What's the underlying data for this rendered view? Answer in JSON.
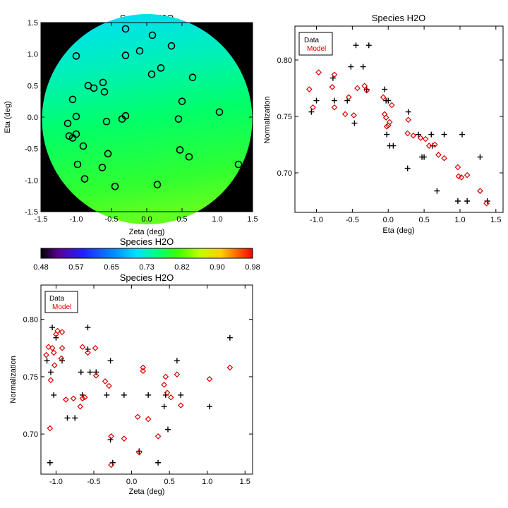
{
  "chart_data": [
    {
      "type": "heatmap",
      "title": "Species H2O",
      "xlabel": "Zeta (deg)",
      "ylabel": "Eta (deg)",
      "xlim": [
        -1.5,
        1.5
      ],
      "ylim": [
        -1.5,
        1.5
      ],
      "xticks": [
        "-1.5",
        "-1.0",
        "-0.5",
        "0.0",
        "0.5",
        "1.0",
        "1.5"
      ],
      "yticks": [
        "-1.5",
        "-1.0",
        "-0.5",
        "0.0",
        "0.5",
        "1.0",
        "1.5"
      ],
      "background": "#000000",
      "field": "circular map of normalization, cyan (~0.68) at top to green (~0.78) at bottom",
      "points": [
        [
          -1.0,
          0.97
        ],
        [
          -1.05,
          0.28
        ],
        [
          -1.12,
          -0.1
        ],
        [
          -1.1,
          -0.3
        ],
        [
          -1.05,
          -0.33
        ],
        [
          -1.0,
          -0.27
        ],
        [
          -1.0,
          0.01
        ],
        [
          -0.98,
          -0.75
        ],
        [
          -0.9,
          -0.46
        ],
        [
          -0.88,
          -0.98
        ],
        [
          -0.83,
          0.5
        ],
        [
          -0.75,
          0.46
        ],
        [
          -0.62,
          0.55
        ],
        [
          -0.63,
          -0.8
        ],
        [
          -0.6,
          0.4
        ],
        [
          -0.57,
          -0.07
        ],
        [
          -0.55,
          -0.58
        ],
        [
          -0.45,
          -1.1
        ],
        [
          -0.35,
          -0.03
        ],
        [
          -0.3,
          0.02
        ],
        [
          -0.3,
          1.4
        ],
        [
          -0.3,
          0.98
        ],
        [
          -0.1,
          1.05
        ],
        [
          0.08,
          1.3
        ],
        [
          0.07,
          0.68
        ],
        [
          0.2,
          0.78
        ],
        [
          0.15,
          -1.07
        ],
        [
          0.35,
          1.13
        ],
        [
          0.45,
          -0.03
        ],
        [
          0.47,
          -0.52
        ],
        [
          0.5,
          0.25
        ],
        [
          0.6,
          -0.63
        ],
        [
          0.65,
          0.63
        ],
        [
          1.03,
          0.08
        ],
        [
          1.3,
          -0.75
        ]
      ]
    },
    {
      "type": "scatter",
      "title": "Species H2O",
      "xlabel": "Eta (deg)",
      "ylabel": "Normalization",
      "xlim": [
        -1.3,
        1.6
      ],
      "ylim": [
        0.665,
        0.83
      ],
      "xticks": [
        "-1.0",
        "-0.5",
        "0.0",
        "0.5",
        "1.0",
        "1.5"
      ],
      "yticks": [
        "0.70",
        "0.75",
        "0.80"
      ],
      "legend": [
        "Data",
        "Model"
      ],
      "legend_position": "top-left",
      "series": [
        {
          "name": "Data",
          "color": "#000000",
          "marker": "plus",
          "points": [
            [
              -1.07,
              0.754
            ],
            [
              -1.0,
              0.764
            ],
            [
              -0.77,
              0.784
            ],
            [
              -0.75,
              0.764
            ],
            [
              -0.57,
              0.764
            ],
            [
              -0.52,
              0.794
            ],
            [
              -0.47,
              0.744
            ],
            [
              -0.45,
              0.813
            ],
            [
              -0.35,
              0.794
            ],
            [
              -0.3,
              0.774
            ],
            [
              -0.27,
              0.813
            ],
            [
              -0.05,
              0.774
            ],
            [
              -0.03,
              0.764
            ],
            [
              -0.02,
              0.734
            ],
            [
              0.02,
              0.724
            ],
            [
              0.0,
              0.764
            ],
            [
              0.07,
              0.724
            ],
            [
              0.27,
              0.704
            ],
            [
              0.28,
              0.754
            ],
            [
              0.42,
              0.734
            ],
            [
              0.47,
              0.714
            ],
            [
              0.5,
              0.714
            ],
            [
              0.6,
              0.734
            ],
            [
              0.62,
              0.724
            ],
            [
              0.68,
              0.684
            ],
            [
              0.78,
              0.734
            ],
            [
              0.97,
              0.675
            ],
            [
              1.03,
              0.734
            ],
            [
              1.1,
              0.675
            ],
            [
              1.28,
              0.714
            ],
            [
              1.38,
              0.675
            ]
          ]
        },
        {
          "name": "Model",
          "color": "#dd0000",
          "marker": "diamond",
          "points": [
            [
              -1.1,
              0.774
            ],
            [
              -1.05,
              0.758
            ],
            [
              -0.97,
              0.789
            ],
            [
              -0.78,
              0.776
            ],
            [
              -0.75,
              0.787
            ],
            [
              -0.75,
              0.758
            ],
            [
              -0.6,
              0.752
            ],
            [
              -0.55,
              0.767
            ],
            [
              -0.48,
              0.751
            ],
            [
              -0.43,
              0.775
            ],
            [
              -0.33,
              0.777
            ],
            [
              -0.3,
              0.773
            ],
            [
              -0.07,
              0.767
            ],
            [
              -0.05,
              0.752
            ],
            [
              -0.03,
              0.749
            ],
            [
              -0.02,
              0.741
            ],
            [
              0.02,
              0.745
            ],
            [
              0.0,
              0.742
            ],
            [
              0.05,
              0.76
            ],
            [
              0.27,
              0.735
            ],
            [
              0.28,
              0.747
            ],
            [
              0.35,
              0.733
            ],
            [
              0.45,
              0.731
            ],
            [
              0.52,
              0.73
            ],
            [
              0.57,
              0.724
            ],
            [
              0.65,
              0.725
            ],
            [
              0.7,
              0.716
            ],
            [
              0.78,
              0.713
            ],
            [
              0.97,
              0.705
            ],
            [
              0.98,
              0.697
            ],
            [
              1.02,
              0.696
            ],
            [
              1.1,
              0.698
            ],
            [
              1.28,
              0.684
            ],
            [
              1.37,
              0.673
            ]
          ]
        }
      ]
    },
    {
      "type": "scatter",
      "title": "Species H2O",
      "xlabel": "Zeta (deg)",
      "ylabel": "Normalization",
      "xlim": [
        -1.2,
        1.6
      ],
      "ylim": [
        0.665,
        0.83
      ],
      "xticks": [
        "-1.0",
        "-0.5",
        "0.0",
        "0.5",
        "1.0",
        "1.5"
      ],
      "yticks": [
        "0.70",
        "0.75",
        "0.80"
      ],
      "legend": [
        "Data",
        "Model"
      ],
      "legend_position": "top-left",
      "series": [
        {
          "name": "Data",
          "color": "#000000",
          "marker": "plus",
          "points": [
            [
              -1.12,
              0.764
            ],
            [
              -1.08,
              0.675
            ],
            [
              -1.07,
              0.754
            ],
            [
              -1.05,
              0.793
            ],
            [
              -1.03,
              0.734
            ],
            [
              -1.0,
              0.784
            ],
            [
              -1.03,
              0.813
            ],
            [
              -0.92,
              0.813
            ],
            [
              -0.92,
              0.764
            ],
            [
              -0.85,
              0.714
            ],
            [
              -0.75,
              0.714
            ],
            [
              -0.67,
              0.754
            ],
            [
              -0.65,
              0.734
            ],
            [
              -0.58,
              0.774
            ],
            [
              -0.58,
              0.793
            ],
            [
              -0.55,
              0.754
            ],
            [
              -0.47,
              0.754
            ],
            [
              -0.33,
              0.734
            ],
            [
              -0.28,
              0.764
            ],
            [
              -0.28,
              0.695
            ],
            [
              -0.25,
              0.675
            ],
            [
              -0.1,
              0.734
            ],
            [
              0.1,
              0.685
            ],
            [
              0.22,
              0.734
            ],
            [
              0.35,
              0.675
            ],
            [
              0.43,
              0.724
            ],
            [
              0.45,
              0.734
            ],
            [
              0.48,
              0.704
            ],
            [
              0.6,
              0.764
            ],
            [
              0.65,
              0.734
            ],
            [
              1.03,
              0.724
            ],
            [
              1.3,
              0.784
            ]
          ]
        },
        {
          "name": "Model",
          "color": "#dd0000",
          "marker": "diamond",
          "points": [
            [
              -1.13,
              0.769
            ],
            [
              -1.1,
              0.776
            ],
            [
              -1.08,
              0.705
            ],
            [
              -1.07,
              0.747
            ],
            [
              -1.05,
              0.775
            ],
            [
              -1.03,
              0.771
            ],
            [
              -1.02,
              0.76
            ],
            [
              -1.0,
              0.787
            ],
            [
              -0.98,
              0.79
            ],
            [
              -0.93,
              0.766
            ],
            [
              -0.92,
              0.775
            ],
            [
              -0.92,
              0.789
            ],
            [
              -0.87,
              0.73
            ],
            [
              -0.77,
              0.731
            ],
            [
              -0.68,
              0.724
            ],
            [
              -0.65,
              0.776
            ],
            [
              -0.65,
              0.731
            ],
            [
              -0.62,
              0.732
            ],
            [
              -0.58,
              0.771
            ],
            [
              -0.48,
              0.775
            ],
            [
              -0.47,
              0.751
            ],
            [
              -0.35,
              0.746
            ],
            [
              -0.3,
              0.742
            ],
            [
              -0.27,
              0.698
            ],
            [
              -0.27,
              0.673
            ],
            [
              -0.1,
              0.696
            ],
            [
              0.08,
              0.715
            ],
            [
              0.1,
              0.684
            ],
            [
              0.15,
              0.758
            ],
            [
              0.15,
              0.755
            ],
            [
              0.22,
              0.713
            ],
            [
              0.35,
              0.698
            ],
            [
              0.43,
              0.743
            ],
            [
              0.45,
              0.75
            ],
            [
              0.47,
              0.736
            ],
            [
              0.52,
              0.732
            ],
            [
              0.6,
              0.752
            ],
            [
              0.65,
              0.725
            ],
            [
              1.03,
              0.748
            ],
            [
              1.3,
              0.758
            ]
          ]
        }
      ]
    },
    {
      "type": "colorbar",
      "title": "Species H2O",
      "ticks": [
        "0.48",
        "0.57",
        "0.65",
        "0.73",
        "0.82",
        "0.90",
        "0.98"
      ],
      "range": [
        0.48,
        0.98
      ],
      "colormap": "rainbow"
    }
  ]
}
